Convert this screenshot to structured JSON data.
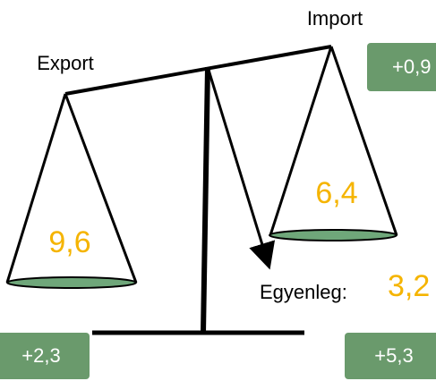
{
  "labels": {
    "export": "Export",
    "import": "Import",
    "balance": "Egyenleg:"
  },
  "values": {
    "export": "9,6",
    "import": "6,4",
    "balance": "3,2"
  },
  "boxes": {
    "top_right": "+0,9",
    "bottom_left": "+2,3",
    "bottom_right": "+5,3"
  }
}
